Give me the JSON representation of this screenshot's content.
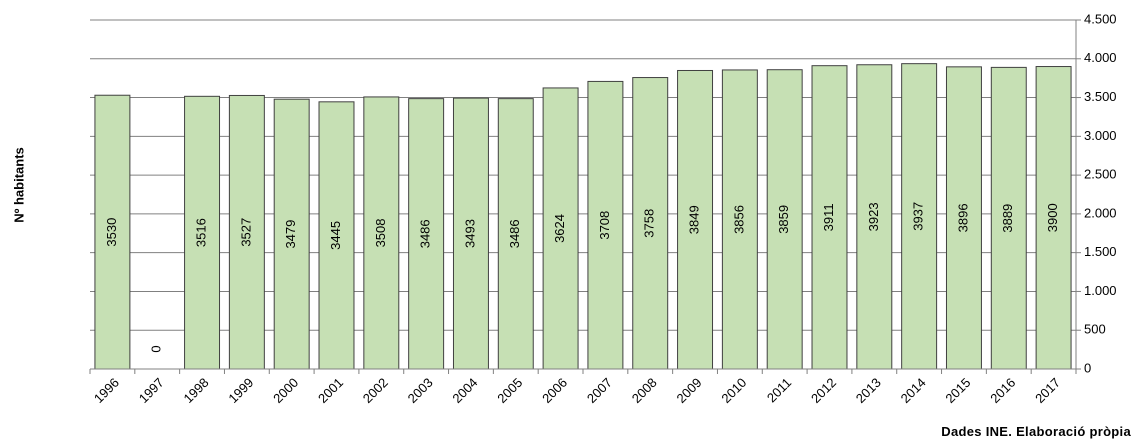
{
  "chart_data": {
    "type": "bar",
    "categories": [
      "1996",
      "1997",
      "1998",
      "1999",
      "2000",
      "2001",
      "2002",
      "2003",
      "2004",
      "2005",
      "2006",
      "2007",
      "2008",
      "2009",
      "2010",
      "2011",
      "2012",
      "2013",
      "2014",
      "2015",
      "2016",
      "2017"
    ],
    "values": [
      3530,
      0,
      3516,
      3527,
      3479,
      3445,
      3508,
      3486,
      3493,
      3486,
      3624,
      3708,
      3758,
      3849,
      3856,
      3859,
      3911,
      3923,
      3937,
      3896,
      3889,
      3900
    ],
    "data_labels": [
      "3530",
      "0",
      "3516",
      "3527",
      "3479",
      "3445",
      "3508",
      "3486",
      "3493",
      "3486",
      "3624",
      "3708",
      "3758",
      "3849",
      "3856",
      "3859",
      "3911",
      "3923",
      "3937",
      "3896",
      "3889",
      "3900"
    ],
    "ylabel": "Nº habitants",
    "ylim": [
      0,
      4500
    ],
    "ytick_values": [
      0,
      500,
      1000,
      1500,
      2000,
      2500,
      3000,
      3500,
      4000,
      4500
    ],
    "ytick_labels": [
      "0",
      "500",
      "1.000",
      "1.500",
      "2.000",
      "2.500",
      "3.000",
      "3.500",
      "4.000",
      "4.500"
    ],
    "y_axis_side": "right",
    "grid": true,
    "legend": "none",
    "source_note": "Dades INE. Elaboració pròpia",
    "colors": {
      "bar_fill": "#c6e0b4",
      "bar_stroke": "#404040",
      "grid": "#808080",
      "axis": "#808080"
    }
  }
}
